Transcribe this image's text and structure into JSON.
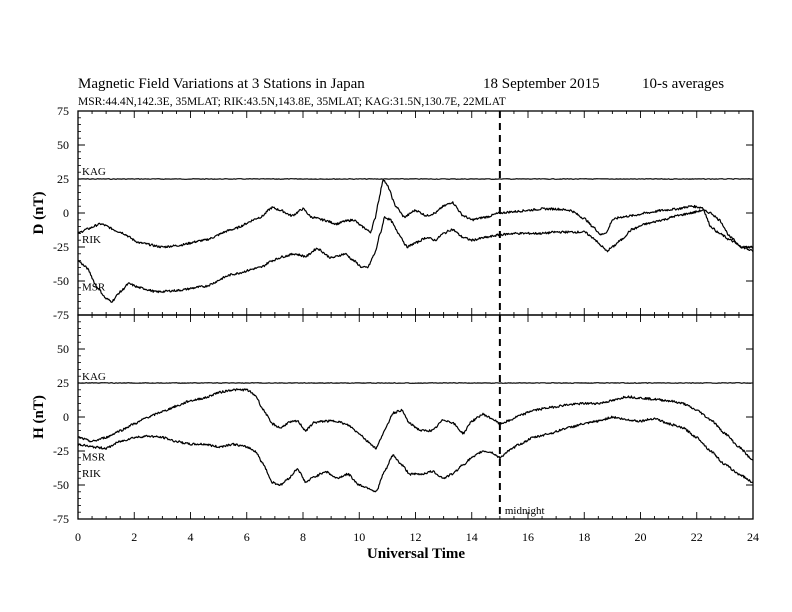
{
  "header": {
    "title": "Magnetic Field Variations at 3 Stations in Japan",
    "date": "18 September 2015",
    "averaging": "10-s averages",
    "stations_line": "MSR:44.4N,142.3E, 35MLAT;  RIK:43.5N,143.8E, 35MLAT;  KAG:31.5N,130.7E, 22MLAT"
  },
  "chart_data": {
    "type": "line",
    "xlabel": "Universal Time",
    "xlim": [
      0,
      24
    ],
    "x_ticks": [
      0,
      2,
      4,
      6,
      8,
      10,
      12,
      14,
      16,
      18,
      20,
      22,
      24
    ],
    "annotation": {
      "x": 15,
      "label": "midnight",
      "style": "dashed vertical line"
    },
    "panels": [
      {
        "name": "D",
        "ylabel": "D (nT)",
        "ylim": [
          -75,
          75
        ],
        "y_ticks": [
          75,
          50,
          25,
          0,
          -25,
          -50,
          -75
        ],
        "series": [
          {
            "name": "KAG",
            "x": [
              0,
              24
            ],
            "y": [
              25,
              25
            ]
          },
          {
            "name": "RIK",
            "x": [
              0,
              0.3,
              0.8,
              1.5,
              2.2,
              3.0,
              3.5,
              4.5,
              5.5,
              6.5,
              6.9,
              7.2,
              7.6,
              8.0,
              8.3,
              8.7,
              9.2,
              9.5,
              9.8,
              10.1,
              10.4,
              10.55,
              10.7,
              10.85,
              11.0,
              11.3,
              11.6,
              12.0,
              12.4,
              12.7,
              13.0,
              13.3,
              13.7,
              14.0,
              14.5,
              15.0,
              15.5,
              16.0,
              16.5,
              17.0,
              17.5,
              18.0,
              18.3,
              18.6,
              18.8,
              19.0,
              19.3,
              19.7,
              20.2,
              20.8,
              21.3,
              21.8,
              22.2,
              22.5,
              22.8,
              23.2,
              23.6,
              24.0
            ],
            "y": [
              -15,
              -12,
              -8,
              -14,
              -22,
              -25,
              -24,
              -20,
              -12,
              -3,
              4,
              2,
              -2,
              3,
              -3,
              -5,
              -8,
              -6,
              -5,
              -10,
              -14,
              -5,
              10,
              25,
              20,
              5,
              -3,
              2,
              -2,
              0,
              5,
              8,
              -2,
              -5,
              -3,
              0,
              1,
              2,
              3,
              3,
              2,
              -4,
              -10,
              -16,
              -14,
              -5,
              -3,
              -2,
              0,
              2,
              3,
              5,
              4,
              -10,
              -15,
              -20,
              -25,
              -25
            ]
          },
          {
            "name": "MSR",
            "x": [
              0,
              0.3,
              0.7,
              1.0,
              1.2,
              1.5,
              1.8,
              2.2,
              2.8,
              3.5,
              4.5,
              5.5,
              6.5,
              6.9,
              7.3,
              7.7,
              8.1,
              8.5,
              9.0,
              9.5,
              9.8,
              10.1,
              10.3,
              10.55,
              10.75,
              10.9,
              11.1,
              11.4,
              11.7,
              12.0,
              12.4,
              12.7,
              13.0,
              13.3,
              13.7,
              14.0,
              14.5,
              15.0,
              15.5,
              16.0,
              16.5,
              17.0,
              17.5,
              18.0,
              18.3,
              18.6,
              18.8,
              19.0,
              19.3,
              19.7,
              20.2,
              20.8,
              21.3,
              21.8,
              22.2,
              22.5,
              22.8,
              23.2,
              23.6,
              24.0
            ],
            "y": [
              -35,
              -40,
              -55,
              -63,
              -65,
              -58,
              -52,
              -55,
              -58,
              -57,
              -54,
              -45,
              -40,
              -35,
              -32,
              -30,
              -32,
              -26,
              -33,
              -30,
              -35,
              -40,
              -40,
              -30,
              -15,
              -3,
              -5,
              -15,
              -25,
              -22,
              -18,
              -20,
              -15,
              -12,
              -18,
              -20,
              -18,
              -16,
              -15,
              -15,
              -15,
              -14,
              -14,
              -14,
              -18,
              -24,
              -28,
              -25,
              -20,
              -12,
              -8,
              -5,
              -2,
              0,
              2,
              0,
              -5,
              -18,
              -25,
              -28
            ]
          }
        ]
      },
      {
        "name": "H",
        "ylabel": "H (nT)",
        "ylim": [
          -75,
          75
        ],
        "y_ticks": [
          75,
          50,
          25,
          0,
          -25,
          -50,
          -75
        ],
        "series": [
          {
            "name": "KAG",
            "x": [
              0,
              24
            ],
            "y": [
              25,
              25
            ]
          },
          {
            "name": "MSR",
            "x": [
              0,
              0.5,
              1.0,
              1.5,
              2.0,
              2.5,
              3.0,
              3.5,
              4.0,
              4.5,
              5.0,
              5.5,
              6.0,
              6.3,
              6.6,
              6.9,
              7.2,
              7.5,
              7.8,
              8.1,
              8.4,
              8.8,
              9.2,
              9.6,
              10.0,
              10.3,
              10.6,
              10.9,
              11.2,
              11.5,
              11.8,
              12.2,
              12.6,
              13.0,
              13.3,
              13.7,
              14.0,
              14.4,
              14.7,
              15.0,
              15.3,
              15.7,
              16.2,
              16.8,
              17.4,
              18.0,
              18.5,
              19.0,
              19.5,
              20.0,
              20.5,
              21.0,
              21.5,
              22.0,
              22.5,
              23.0,
              23.5,
              24.0
            ],
            "y": [
              -15,
              -18,
              -15,
              -10,
              -5,
              0,
              4,
              8,
              12,
              14,
              18,
              20,
              20,
              16,
              5,
              -5,
              -8,
              -4,
              -3,
              -10,
              -4,
              -3,
              -3,
              -6,
              -12,
              -18,
              -23,
              -10,
              3,
              5,
              -5,
              -10,
              -10,
              -2,
              -4,
              -12,
              -3,
              2,
              -1,
              -5,
              -3,
              1,
              5,
              7,
              9,
              10,
              10,
              12,
              15,
              14,
              13,
              12,
              10,
              5,
              -2,
              -12,
              -22,
              -32
            ]
          },
          {
            "name": "RIK",
            "x": [
              0,
              0.5,
              1.0,
              1.5,
              2.0,
              2.5,
              3.0,
              3.5,
              4.0,
              4.5,
              5.0,
              5.5,
              6.0,
              6.3,
              6.6,
              6.9,
              7.2,
              7.5,
              7.8,
              8.1,
              8.4,
              8.8,
              9.2,
              9.6,
              10.0,
              10.3,
              10.6,
              10.9,
              11.2,
              11.5,
              11.8,
              12.2,
              12.6,
              13.0,
              13.3,
              13.7,
              14.0,
              14.4,
              14.7,
              15.0,
              15.3,
              15.7,
              16.2,
              16.8,
              17.4,
              18.0,
              18.5,
              19.0,
              19.5,
              20.0,
              20.5,
              21.0,
              21.5,
              22.0,
              22.5,
              23.0,
              23.5,
              24.0
            ],
            "y": [
              -20,
              -22,
              -23,
              -18,
              -15,
              -14,
              -15,
              -18,
              -20,
              -20,
              -22,
              -20,
              -22,
              -25,
              -35,
              -48,
              -50,
              -45,
              -38,
              -48,
              -44,
              -40,
              -45,
              -42,
              -50,
              -52,
              -55,
              -40,
              -28,
              -35,
              -42,
              -42,
              -40,
              -45,
              -42,
              -35,
              -30,
              -25,
              -26,
              -30,
              -25,
              -20,
              -15,
              -12,
              -8,
              -5,
              -3,
              0,
              -2,
              -3,
              -1,
              -5,
              -8,
              -15,
              -25,
              -35,
              -42,
              -48
            ]
          }
        ]
      }
    ]
  }
}
